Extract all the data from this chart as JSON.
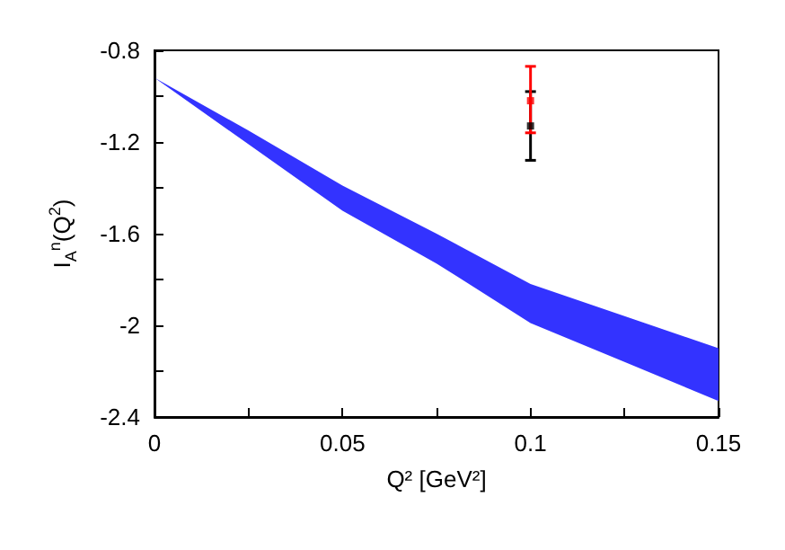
{
  "chart_data": {
    "type": "line",
    "xlabel": "Q² [GeV²]",
    "ylabel": "I$_{A}$$^{n}$(Q$^{2}$)",
    "xlim": [
      0,
      0.15
    ],
    "xticks": [
      0,
      {
        "value": 0.025,
        "label": null
      },
      0.05,
      {
        "value": 0.075,
        "label": null
      },
      0.1,
      {
        "value": 0.125,
        "label": null
      },
      0.15
    ],
    "ylim": [
      -2.4,
      -0.8
    ],
    "yticks": [
      -2.4,
      {
        "value": -2.2,
        "label": null
      },
      -2,
      {
        "value": -1.8,
        "label": null
      },
      -1.6,
      {
        "value": -1.4,
        "label": null
      },
      -1.2,
      {
        "value": -1.0,
        "label": null
      },
      -0.8
    ],
    "grid": false,
    "series": [
      {
        "color": "#3333ff",
        "x": [
          0,
          0.025,
          0.05,
          0.075,
          0.1,
          0.125,
          0.15
        ],
        "values": [
          null,
          null,
          null,
          null,
          null,
          null,
          null
        ],
        "upper": [
          -0.92,
          -1.15,
          -1.39,
          -1.6,
          -1.82,
          -1.96,
          -2.1
        ],
        "lower": [
          -0.92,
          -1.21,
          -1.5,
          -1.73,
          -1.99,
          -2.16,
          -2.33
        ]
      },
      {
        "type": "scatter",
        "color": "#000000",
        "marker": "square",
        "x": [
          0.1
        ],
        "values": [
          -1.13
        ],
        "errors": [
          [
            -1.28,
            -0.98
          ]
        ]
      },
      {
        "type": "scatter",
        "color": "#ff0000",
        "marker": "square",
        "x": [
          0.1
        ],
        "values": [
          -1.02
        ],
        "errors": [
          [
            -1.16,
            -0.87
          ]
        ]
      }
    ]
  }
}
